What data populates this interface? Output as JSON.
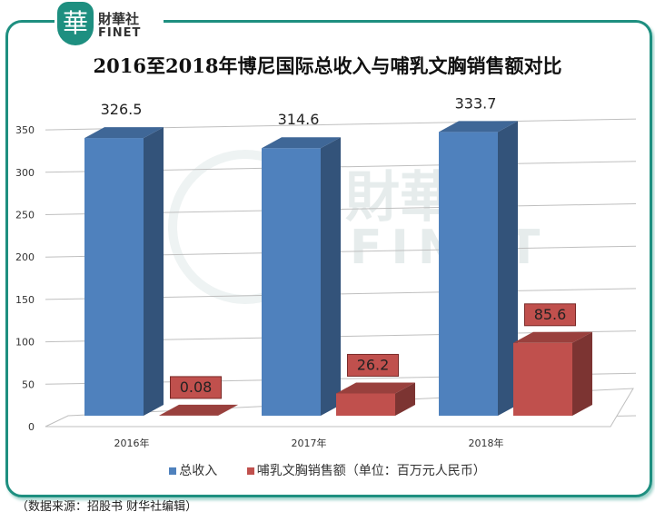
{
  "logo": {
    "cn": "財華社",
    "en": "FINET",
    "seal": "華"
  },
  "watermark": {
    "cn": "財華社",
    "en": "FINET"
  },
  "chart_data": {
    "type": "bar",
    "title": "2016至2018年博尼国际总收入与哺乳文胸销售额对比",
    "categories": [
      "2016年",
      "2017年",
      "2018年"
    ],
    "series": [
      {
        "name": "总收入",
        "values": [
          326.5,
          314.6,
          333.7
        ],
        "labels": [
          "326.5",
          "314.6",
          "333.7"
        ],
        "color": "#4f81bd"
      },
      {
        "name": "哺乳文胸销售额（单位：百万元人民币）",
        "values": [
          0.08,
          26.2,
          85.6
        ],
        "labels": [
          "0.08",
          "26.2",
          "85.6"
        ],
        "color": "#c0504d"
      }
    ],
    "ylim": [
      0,
      350
    ],
    "yticks": [
      "0",
      "50",
      "100",
      "150",
      "200",
      "250",
      "300",
      "350"
    ],
    "grid": true,
    "legend_position": "bottom",
    "3d": true
  },
  "source": "（数据来源：招股书 财华社编辑）"
}
